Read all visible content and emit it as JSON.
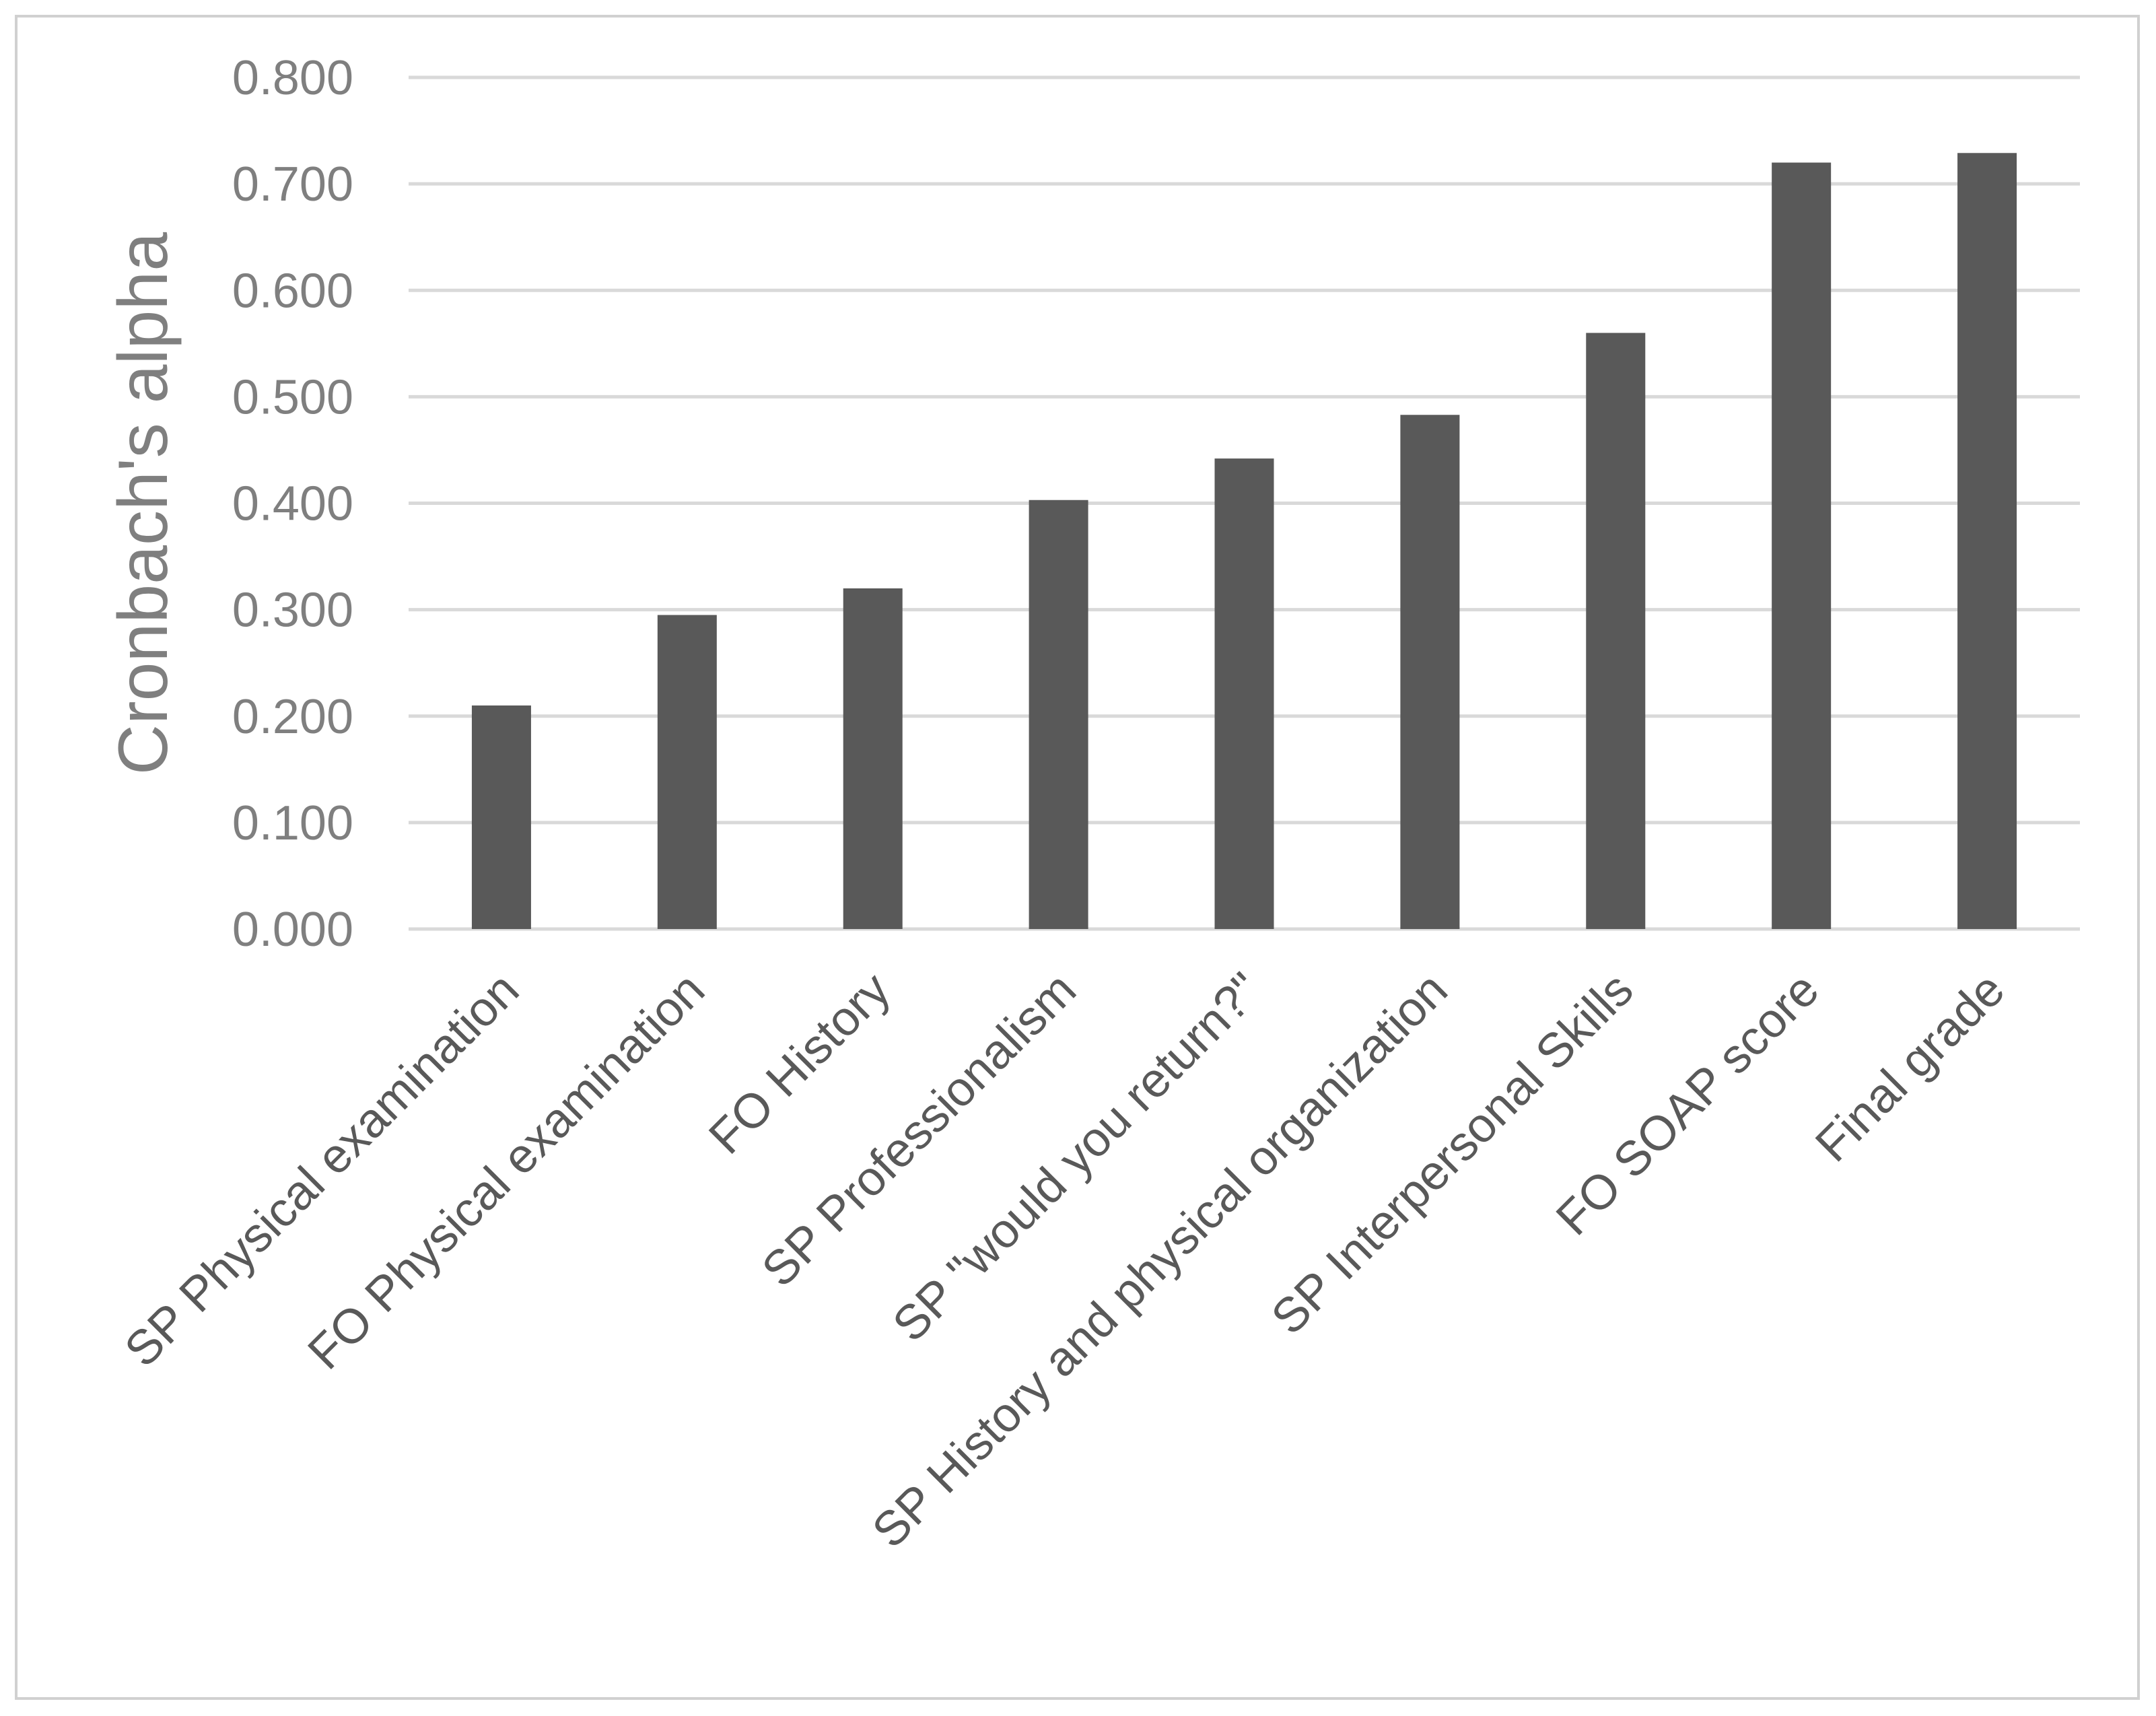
{
  "chart_data": {
    "type": "bar",
    "title": "",
    "xlabel": "",
    "ylabel": "Cronbach's alpha",
    "ylim": [
      0,
      0.8
    ],
    "yticks": [
      0.0,
      0.1,
      0.2,
      0.3,
      0.4,
      0.5,
      0.6,
      0.7,
      0.8
    ],
    "ytick_labels": [
      "0.000",
      "0.100",
      "0.200",
      "0.300",
      "0.400",
      "0.500",
      "0.600",
      "0.700",
      "0.800"
    ],
    "grid": true,
    "legend": "none",
    "bar_color": "#595959",
    "categories": [
      "SP Physical examination",
      "FO Physical examination",
      "FO History",
      "SP Professionalism",
      "SP \"would you return?\"",
      "SP History and physical organization",
      "SP Interpersonal Skills",
      "FO SOAP score",
      "Final grade"
    ],
    "values": [
      0.21,
      0.295,
      0.32,
      0.403,
      0.442,
      0.483,
      0.56,
      0.72,
      0.729
    ]
  }
}
